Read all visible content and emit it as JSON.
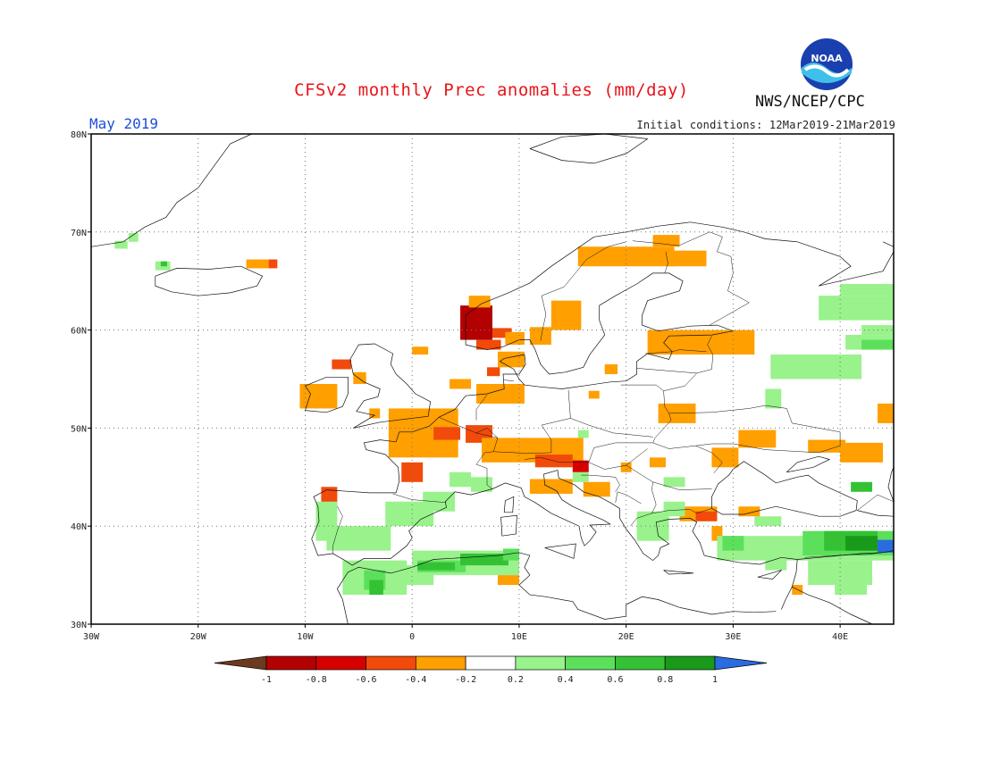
{
  "header": {
    "title": "CFSv2 monthly Prec anomalies (mm/day)",
    "period": "May 2019",
    "initial_conditions": "Initial conditions: 12Mar2019-21Mar2019",
    "agency": "NWS/NCEP/CPC",
    "logo_text": "NOAA"
  },
  "map": {
    "region": {
      "lon_min": -30,
      "lon_max": 45,
      "lat_min": 30,
      "lat_max": 80
    },
    "lon_ticks": [
      "30W",
      "20W",
      "10W",
      "0",
      "10E",
      "20E",
      "30E",
      "40E"
    ],
    "lat_ticks": [
      "30N",
      "40N",
      "50N",
      "60N",
      "70N",
      "80N"
    ],
    "gridlines": "dotted"
  },
  "legend": {
    "labels": [
      "-1",
      "-0.8",
      "-0.6",
      "-0.4",
      "-0.2",
      "0.2",
      "0.4",
      "0.6",
      "0.8",
      "1"
    ],
    "colors": [
      "#6b3a1f",
      "#b30000",
      "#d60000",
      "#f24a0a",
      "#ff9f00",
      "#ffffff",
      "#99f28c",
      "#5ce05c",
      "#34c234",
      "#1a9a1a",
      "#2a6be0"
    ]
  },
  "colors": {
    "orange": "#ff9f00",
    "red_orange": "#f24a0a",
    "red": "#d60000",
    "dark_red": "#b30000",
    "light_green": "#99f28c",
    "green": "#5ce05c",
    "mid_green": "#34c234",
    "dark_green": "#1a9a1a",
    "blue": "#2a6be0"
  },
  "anomaly_cells": [
    {
      "lon": -15.5,
      "lat": 66.3,
      "w": 2.2,
      "h": 0.9,
      "c": "orange"
    },
    {
      "lon": -13.4,
      "lat": 66.3,
      "w": 0.8,
      "h": 0.9,
      "c": "red_orange"
    },
    {
      "lon": -26.5,
      "lat": 69.0,
      "w": 0.9,
      "h": 0.9,
      "c": "light_green"
    },
    {
      "lon": -27.8,
      "lat": 68.3,
      "w": 1.2,
      "h": 0.8,
      "c": "light_green"
    },
    {
      "lon": -24.0,
      "lat": 66.1,
      "w": 1.4,
      "h": 0.9,
      "c": "light_green"
    },
    {
      "lon": -23.5,
      "lat": 66.5,
      "w": 0.6,
      "h": 0.5,
      "c": "mid_green"
    },
    {
      "lon": 4.5,
      "lat": 59.0,
      "w": 3.0,
      "h": 3.5,
      "c": "dark_red"
    },
    {
      "lon": 5.3,
      "lat": 62.3,
      "w": 2.0,
      "h": 1.2,
      "c": "orange"
    },
    {
      "lon": 6.0,
      "lat": 58.0,
      "w": 2.3,
      "h": 1.0,
      "c": "red_orange"
    },
    {
      "lon": 7.5,
      "lat": 59.2,
      "w": 1.8,
      "h": 1.0,
      "c": "red_orange"
    },
    {
      "lon": 8.7,
      "lat": 58.5,
      "w": 1.8,
      "h": 1.3,
      "c": "orange"
    },
    {
      "lon": 8.0,
      "lat": 56.2,
      "w": 2.5,
      "h": 1.6,
      "c": "orange"
    },
    {
      "lon": 7.0,
      "lat": 55.3,
      "w": 1.2,
      "h": 0.9,
      "c": "red_orange"
    },
    {
      "lon": 13.0,
      "lat": 60.0,
      "w": 2.8,
      "h": 3.0,
      "c": "orange"
    },
    {
      "lon": 11.0,
      "lat": 58.5,
      "w": 2.0,
      "h": 1.8,
      "c": "orange"
    },
    {
      "lon": 15.5,
      "lat": 66.5,
      "w": 9.0,
      "h": 2.0,
      "c": "orange"
    },
    {
      "lon": 22.5,
      "lat": 68.5,
      "w": 2.5,
      "h": 1.2,
      "c": "orange"
    },
    {
      "lon": 24.0,
      "lat": 66.5,
      "w": 3.5,
      "h": 1.6,
      "c": "orange"
    },
    {
      "lon": 22.0,
      "lat": 57.5,
      "w": 10.0,
      "h": 2.5,
      "c": "orange"
    },
    {
      "lon": 23.0,
      "lat": 50.5,
      "w": 3.5,
      "h": 2.0,
      "c": "orange"
    },
    {
      "lon": 18.0,
      "lat": 55.5,
      "w": 1.2,
      "h": 1.0,
      "c": "orange"
    },
    {
      "lon": 0.0,
      "lat": 57.5,
      "w": 1.5,
      "h": 0.8,
      "c": "orange"
    },
    {
      "lon": 6.0,
      "lat": 52.5,
      "w": 4.5,
      "h": 2.0,
      "c": "orange"
    },
    {
      "lon": 3.5,
      "lat": 54.0,
      "w": 2.0,
      "h": 1.0,
      "c": "orange"
    },
    {
      "lon": 16.5,
      "lat": 53.0,
      "w": 1.0,
      "h": 0.8,
      "c": "orange"
    },
    {
      "lon": -10.5,
      "lat": 52.0,
      "w": 3.5,
      "h": 2.5,
      "c": "orange"
    },
    {
      "lon": -7.5,
      "lat": 56.0,
      "w": 1.8,
      "h": 1.0,
      "c": "red_orange"
    },
    {
      "lon": -5.5,
      "lat": 54.5,
      "w": 1.2,
      "h": 1.2,
      "c": "orange"
    },
    {
      "lon": -4.0,
      "lat": 51.0,
      "w": 1.0,
      "h": 1.0,
      "c": "orange"
    },
    {
      "lon": -2.2,
      "lat": 47.0,
      "w": 6.5,
      "h": 5.0,
      "c": "orange"
    },
    {
      "lon": 2.0,
      "lat": 48.8,
      "w": 2.5,
      "h": 1.3,
      "c": "red_orange"
    },
    {
      "lon": 5.0,
      "lat": 48.5,
      "w": 2.5,
      "h": 1.8,
      "c": "red_orange"
    },
    {
      "lon": -1.0,
      "lat": 44.5,
      "w": 2.0,
      "h": 2.0,
      "c": "red_orange"
    },
    {
      "lon": 6.5,
      "lat": 46.5,
      "w": 9.5,
      "h": 2.5,
      "c": "orange"
    },
    {
      "lon": 11.5,
      "lat": 46.0,
      "w": 3.5,
      "h": 1.3,
      "c": "red_orange"
    },
    {
      "lon": 15.0,
      "lat": 45.5,
      "w": 1.5,
      "h": 1.2,
      "c": "red"
    },
    {
      "lon": 11.0,
      "lat": 43.3,
      "w": 4.0,
      "h": 1.5,
      "c": "orange"
    },
    {
      "lon": 16.0,
      "lat": 43.0,
      "w": 2.5,
      "h": 1.5,
      "c": "orange"
    },
    {
      "lon": 19.5,
      "lat": 45.5,
      "w": 1.0,
      "h": 1.0,
      "c": "orange"
    },
    {
      "lon": 22.2,
      "lat": 46.0,
      "w": 1.5,
      "h": 1.0,
      "c": "orange"
    },
    {
      "lon": 30.5,
      "lat": 48.0,
      "w": 3.5,
      "h": 1.8,
      "c": "orange"
    },
    {
      "lon": 28.0,
      "lat": 46.0,
      "w": 2.5,
      "h": 2.0,
      "c": "orange"
    },
    {
      "lon": 37.0,
      "lat": 47.5,
      "w": 3.5,
      "h": 1.3,
      "c": "orange"
    },
    {
      "lon": 40.0,
      "lat": 46.5,
      "w": 4.0,
      "h": 2.0,
      "c": "orange"
    },
    {
      "lon": 43.5,
      "lat": 50.5,
      "w": 1.5,
      "h": 2.0,
      "c": "orange"
    },
    {
      "lon": 25.0,
      "lat": 40.5,
      "w": 3.5,
      "h": 1.5,
      "c": "orange"
    },
    {
      "lon": 26.5,
      "lat": 40.5,
      "w": 2.0,
      "h": 1.0,
      "c": "red_orange"
    },
    {
      "lon": 28.0,
      "lat": 38.5,
      "w": 1.0,
      "h": 1.5,
      "c": "orange"
    },
    {
      "lon": 30.5,
      "lat": 41.0,
      "w": 2.0,
      "h": 1.0,
      "c": "orange"
    },
    {
      "lon": -8.5,
      "lat": 42.0,
      "w": 1.5,
      "h": 2.0,
      "c": "red_orange"
    },
    {
      "lon": 8.0,
      "lat": 34.0,
      "w": 2.0,
      "h": 1.0,
      "c": "orange"
    },
    {
      "lon": 35.5,
      "lat": 33.0,
      "w": 1.0,
      "h": 1.0,
      "c": "orange"
    },
    {
      "lon": -9.0,
      "lat": 38.5,
      "w": 2.0,
      "h": 4.0,
      "c": "light_green"
    },
    {
      "lon": -8.0,
      "lat": 37.5,
      "w": 6.0,
      "h": 2.5,
      "c": "light_green"
    },
    {
      "lon": -2.5,
      "lat": 40.0,
      "w": 4.5,
      "h": 2.5,
      "c": "light_green"
    },
    {
      "lon": 1.0,
      "lat": 41.5,
      "w": 3.0,
      "h": 2.0,
      "c": "light_green"
    },
    {
      "lon": 3.5,
      "lat": 44.0,
      "w": 2.0,
      "h": 1.5,
      "c": "light_green"
    },
    {
      "lon": 5.5,
      "lat": 43.5,
      "w": 2.0,
      "h": 1.5,
      "c": "light_green"
    },
    {
      "lon": -6.5,
      "lat": 33.0,
      "w": 6.0,
      "h": 3.5,
      "c": "light_green"
    },
    {
      "lon": -4.5,
      "lat": 33.5,
      "w": 2.0,
      "h": 2.0,
      "c": "green"
    },
    {
      "lon": -4.0,
      "lat": 33.0,
      "w": 1.3,
      "h": 1.5,
      "c": "mid_green"
    },
    {
      "lon": -1.0,
      "lat": 34.0,
      "w": 3.0,
      "h": 2.0,
      "c": "light_green"
    },
    {
      "lon": 0.0,
      "lat": 35.0,
      "w": 10.0,
      "h": 2.5,
      "c": "light_green"
    },
    {
      "lon": 0.5,
      "lat": 35.3,
      "w": 4.5,
      "h": 1.2,
      "c": "green"
    },
    {
      "lon": 0.5,
      "lat": 35.5,
      "w": 3.5,
      "h": 0.8,
      "c": "mid_green"
    },
    {
      "lon": 4.5,
      "lat": 36.0,
      "w": 4.5,
      "h": 1.2,
      "c": "mid_green"
    },
    {
      "lon": 8.5,
      "lat": 36.5,
      "w": 1.5,
      "h": 1.2,
      "c": "green"
    },
    {
      "lon": 21.0,
      "lat": 38.5,
      "w": 3.0,
      "h": 3.0,
      "c": "light_green"
    },
    {
      "lon": 23.5,
      "lat": 41.0,
      "w": 2.0,
      "h": 1.5,
      "c": "light_green"
    },
    {
      "lon": 15.0,
      "lat": 44.5,
      "w": 1.5,
      "h": 1.0,
      "c": "light_green"
    },
    {
      "lon": 23.5,
      "lat": 44.0,
      "w": 2.0,
      "h": 1.0,
      "c": "light_green"
    },
    {
      "lon": 28.5,
      "lat": 36.5,
      "w": 16.5,
      "h": 2.5,
      "c": "light_green"
    },
    {
      "lon": 29.0,
      "lat": 37.5,
      "w": 2.0,
      "h": 1.5,
      "c": "green"
    },
    {
      "lon": 32.0,
      "lat": 40.0,
      "w": 2.5,
      "h": 1.0,
      "c": "light_green"
    },
    {
      "lon": 33.0,
      "lat": 35.5,
      "w": 2.0,
      "h": 1.5,
      "c": "light_green"
    },
    {
      "lon": 36.5,
      "lat": 37.0,
      "w": 8.5,
      "h": 2.5,
      "c": "green"
    },
    {
      "lon": 38.5,
      "lat": 37.5,
      "w": 5.0,
      "h": 2.0,
      "c": "mid_green"
    },
    {
      "lon": 40.5,
      "lat": 37.5,
      "w": 3.0,
      "h": 1.5,
      "c": "dark_green"
    },
    {
      "lon": 43.5,
      "lat": 37.3,
      "w": 1.5,
      "h": 1.3,
      "c": "blue"
    },
    {
      "lon": 41.0,
      "lat": 43.5,
      "w": 2.0,
      "h": 1.0,
      "c": "mid_green"
    },
    {
      "lon": 37.0,
      "lat": 34.0,
      "w": 6.0,
      "h": 2.5,
      "c": "light_green"
    },
    {
      "lon": 39.5,
      "lat": 33.0,
      "w": 3.0,
      "h": 1.5,
      "c": "light_green"
    },
    {
      "lon": 33.0,
      "lat": 52.0,
      "w": 1.5,
      "h": 2.0,
      "c": "light_green"
    },
    {
      "lon": 33.5,
      "lat": 55.0,
      "w": 8.5,
      "h": 2.5,
      "c": "light_green"
    },
    {
      "lon": 40.5,
      "lat": 58.0,
      "w": 4.5,
      "h": 1.5,
      "c": "light_green"
    },
    {
      "lon": 42.0,
      "lat": 58.0,
      "w": 3.0,
      "h": 1.0,
      "c": "green"
    },
    {
      "lon": 42.0,
      "lat": 59.5,
      "w": 3.0,
      "h": 1.0,
      "c": "light_green"
    },
    {
      "lon": 38.0,
      "lat": 61.0,
      "w": 7.0,
      "h": 2.5,
      "c": "light_green"
    },
    {
      "lon": 40.0,
      "lat": 63.5,
      "w": 5.0,
      "h": 1.2,
      "c": "light_green"
    },
    {
      "lon": 15.5,
      "lat": 49.0,
      "w": 1.0,
      "h": 0.8,
      "c": "light_green"
    }
  ]
}
